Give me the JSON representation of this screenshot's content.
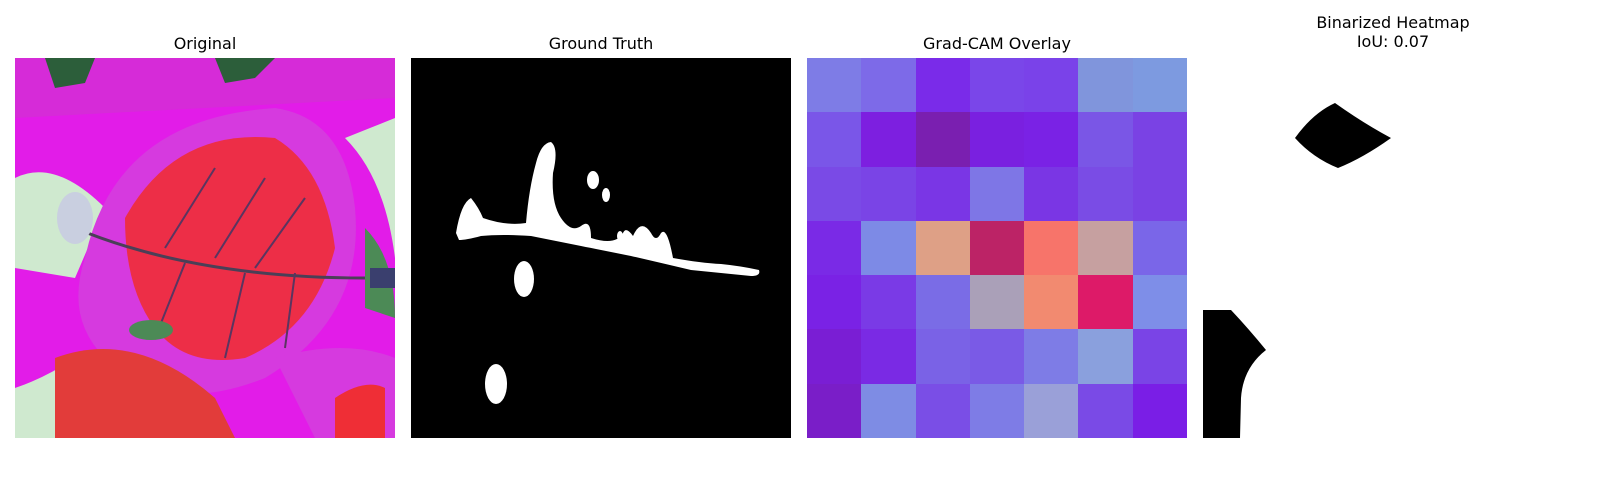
{
  "panels": [
    {
      "title": "Original"
    },
    {
      "title": "Ground Truth"
    },
    {
      "title": "Grad-CAM Overlay"
    },
    {
      "title_line1": "Binarized Heatmap",
      "title_line2": "IoU: 0.07"
    }
  ],
  "gradcam_grid": [
    [
      "#7e7ce6",
      "#7d6ae8",
      "#7a2be9",
      "#7a46e9",
      "#7a42e9",
      "#8095dc",
      "#7d9ae0"
    ],
    [
      "#7a56e8",
      "#7d1fe0",
      "#7a1fb0",
      "#7a20e0",
      "#7a22e5",
      "#7a56e6",
      "#7a42e4"
    ],
    [
      "#7a4ae6",
      "#7a44e6",
      "#7a36e5",
      "#7e76e6",
      "#7a36e4",
      "#7a4ce5",
      "#7a42e4"
    ],
    [
      "#7a2ae6",
      "#7d8ae6",
      "#dea086",
      "#bc2366",
      "#f7746a",
      "#c6a0a0",
      "#7a66e8"
    ],
    [
      "#7a22e5",
      "#7a3ae6",
      "#7a6ce6",
      "#aaa0b8",
      "#f28a70",
      "#dd1a68",
      "#7e8ee8"
    ],
    [
      "#7a1ed4",
      "#7a2ae4",
      "#7a62e6",
      "#7a5ae6",
      "#7e7ce6",
      "#8aa0dd",
      "#7a44e6"
    ],
    [
      "#7a1ec8",
      "#7e8ce4",
      "#7a4ee6",
      "#7e7ce6",
      "#9aa0d8",
      "#7a4ae6",
      "#7a1ee6"
    ]
  ]
}
